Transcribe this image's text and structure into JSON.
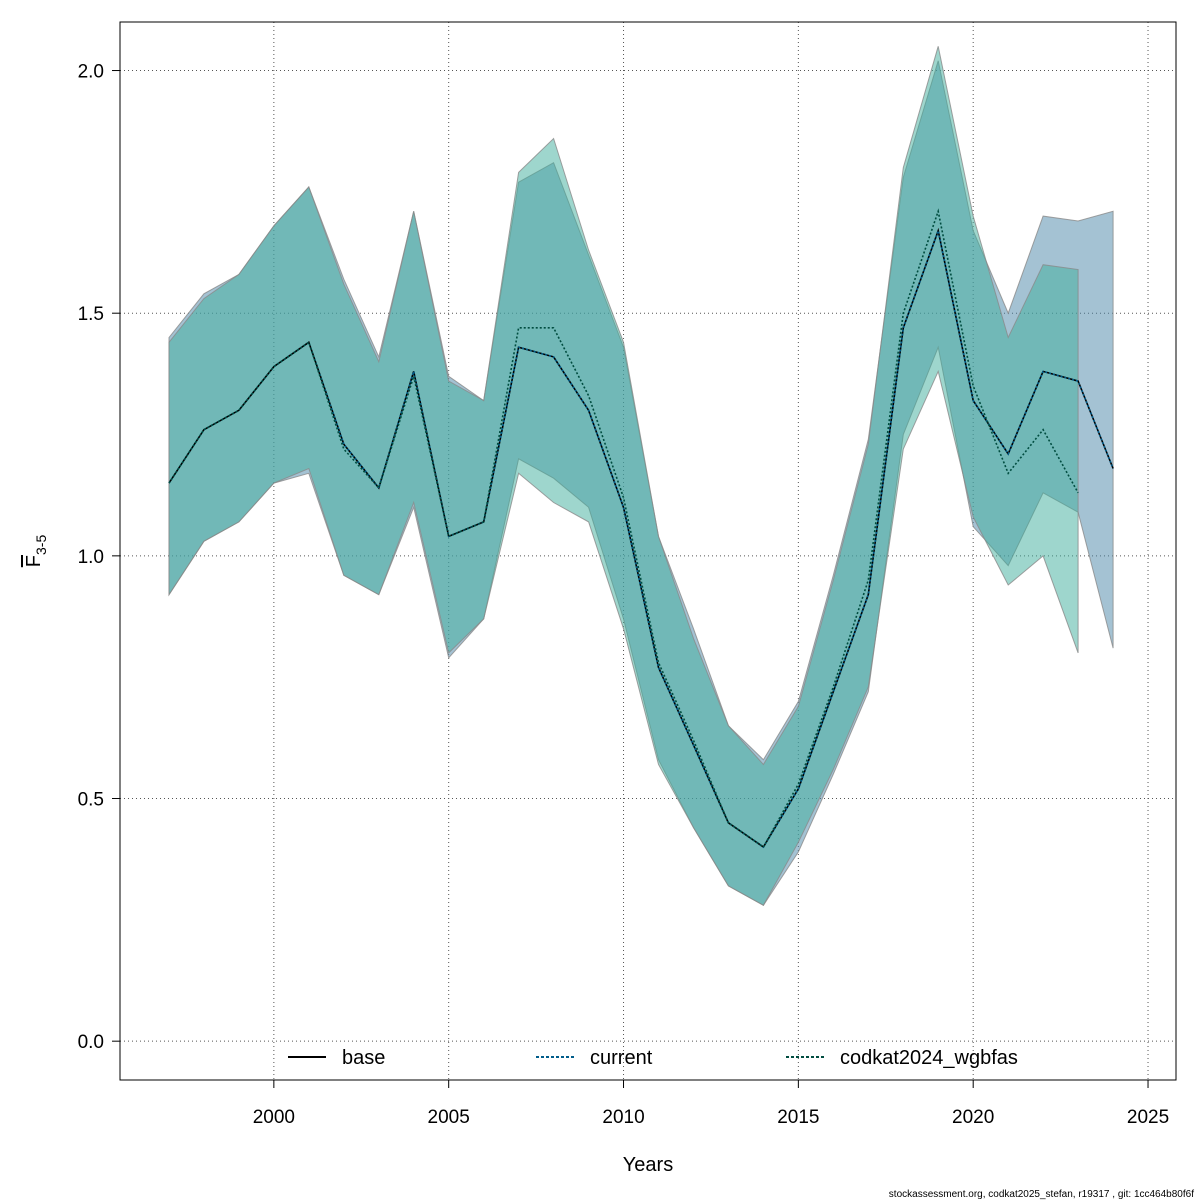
{
  "chart_data": {
    "type": "area",
    "xlabel": "Years",
    "ylabel_main": "F",
    "ylabel_sub": "3-5",
    "xlim": [
      1995.6,
      2025.8
    ],
    "ylim": [
      -0.08,
      2.1
    ],
    "x_ticks": [
      2000,
      2005,
      2010,
      2015,
      2020,
      2025
    ],
    "y_ticks": [
      0.0,
      0.5,
      1.0,
      1.5,
      2.0
    ],
    "y_tick_labels": [
      "0.0",
      "0.5",
      "1.0",
      "1.5",
      "2.0"
    ],
    "grid": true,
    "legend_position": "bottom",
    "series": [
      {
        "name": "base",
        "color": "#000000",
        "line_style": "solid",
        "band_color": "#4a86a8",
        "band_opacity": 0.5,
        "x": [
          1997,
          1998,
          1999,
          2000,
          2001,
          2002,
          2003,
          2004,
          2005,
          2006,
          2007,
          2008,
          2009,
          2010,
          2011,
          2012,
          2013,
          2014,
          2015,
          2016,
          2017,
          2018,
          2019,
          2020,
          2021,
          2022,
          2023,
          2024
        ],
        "values": [
          1.15,
          1.26,
          1.3,
          1.39,
          1.44,
          1.23,
          1.14,
          1.38,
          1.04,
          1.07,
          1.43,
          1.41,
          1.3,
          1.1,
          0.77,
          0.61,
          0.45,
          0.4,
          0.52,
          0.72,
          0.92,
          1.47,
          1.67,
          1.32,
          1.21,
          1.38,
          1.36,
          1.18
        ],
        "lower": [
          0.92,
          1.03,
          1.07,
          1.15,
          1.17,
          0.96,
          0.92,
          1.1,
          0.79,
          0.87,
          1.2,
          1.16,
          1.1,
          0.87,
          0.58,
          0.44,
          0.32,
          0.28,
          0.39,
          0.55,
          0.72,
          1.25,
          1.43,
          1.06,
          0.98,
          1.13,
          1.09,
          0.81
        ],
        "upper": [
          1.45,
          1.54,
          1.58,
          1.68,
          1.76,
          1.57,
          1.41,
          1.71,
          1.37,
          1.32,
          1.77,
          1.81,
          1.62,
          1.43,
          1.04,
          0.85,
          0.65,
          0.58,
          0.7,
          0.96,
          1.24,
          1.78,
          2.02,
          1.67,
          1.5,
          1.7,
          1.69,
          1.71
        ]
      },
      {
        "name": "current",
        "color": "#005c8a",
        "line_style": "dotted",
        "band_color": "#4a86a8",
        "band_opacity": 0.0,
        "x": [
          1997,
          1998,
          1999,
          2000,
          2001,
          2002,
          2003,
          2004,
          2005,
          2006,
          2007,
          2008,
          2009,
          2010,
          2011,
          2012,
          2013,
          2014,
          2015,
          2016,
          2017,
          2018,
          2019,
          2020,
          2021,
          2022,
          2023,
          2024
        ],
        "values": [
          1.15,
          1.26,
          1.3,
          1.39,
          1.44,
          1.23,
          1.14,
          1.38,
          1.04,
          1.07,
          1.43,
          1.41,
          1.3,
          1.1,
          0.77,
          0.61,
          0.45,
          0.4,
          0.52,
          0.72,
          0.92,
          1.47,
          1.67,
          1.32,
          1.21,
          1.38,
          1.36,
          1.18
        ],
        "lower": [],
        "upper": []
      },
      {
        "name": "codkat2024_wgbfas",
        "color": "#004d40",
        "line_style": "dotted",
        "band_color": "#3eae9c",
        "band_opacity": 0.5,
        "x": [
          1997,
          1998,
          1999,
          2000,
          2001,
          2002,
          2003,
          2004,
          2005,
          2006,
          2007,
          2008,
          2009,
          2010,
          2011,
          2012,
          2013,
          2014,
          2015,
          2016,
          2017,
          2018,
          2019,
          2020,
          2021,
          2022,
          2023
        ],
        "values": [
          1.15,
          1.26,
          1.3,
          1.39,
          1.44,
          1.22,
          1.14,
          1.37,
          1.04,
          1.07,
          1.47,
          1.47,
          1.33,
          1.12,
          0.78,
          0.62,
          0.45,
          0.4,
          0.53,
          0.73,
          0.95,
          1.5,
          1.71,
          1.35,
          1.17,
          1.26,
          1.13
        ],
        "lower": [
          0.92,
          1.03,
          1.07,
          1.15,
          1.18,
          0.96,
          0.92,
          1.11,
          0.8,
          0.87,
          1.17,
          1.11,
          1.07,
          0.85,
          0.57,
          0.44,
          0.32,
          0.28,
          0.41,
          0.56,
          0.73,
          1.22,
          1.38,
          1.08,
          0.94,
          1.0,
          0.8
        ],
        "upper": [
          1.44,
          1.53,
          1.58,
          1.68,
          1.76,
          1.56,
          1.4,
          1.71,
          1.36,
          1.32,
          1.79,
          1.86,
          1.63,
          1.44,
          1.04,
          0.83,
          0.65,
          0.57,
          0.69,
          0.95,
          1.23,
          1.8,
          2.05,
          1.7,
          1.45,
          1.6,
          1.59
        ]
      }
    ]
  },
  "footer": "stockassessment.org, codkat2025_stefan, r19317 , git: 1cc464b80f6f"
}
